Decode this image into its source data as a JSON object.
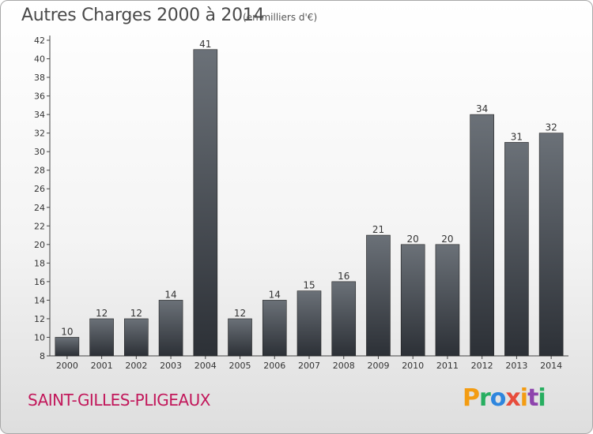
{
  "title": "Autres Charges 2000 à 2014",
  "subtitle": "(en milliers d'€)",
  "place_name": "SAINT-GILLES-PLIGEAUX",
  "brand": {
    "letters": [
      "P",
      "r",
      "o",
      "x",
      "i",
      "t",
      "i"
    ],
    "colors": [
      "#f39c12",
      "#27ae60",
      "#2e86de",
      "#e74c3c",
      "#f39c12",
      "#8e44ad",
      "#27ae60"
    ]
  },
  "colors": {
    "bar_top": "#6b7178",
    "bar_bottom": "#2c3036",
    "place": "#c2185b"
  },
  "chart_data": {
    "type": "bar",
    "title": "Autres Charges 2000 à 2014",
    "subtitle": "(en milliers d'€)",
    "xlabel": "",
    "ylabel": "",
    "categories": [
      "2000",
      "2001",
      "2002",
      "2003",
      "2004",
      "2005",
      "2006",
      "2007",
      "2008",
      "2009",
      "2010",
      "2011",
      "2012",
      "2013",
      "2014"
    ],
    "values": [
      10,
      12,
      12,
      14,
      41,
      12,
      14,
      15,
      16,
      21,
      20,
      20,
      34,
      31,
      32
    ],
    "ylim": [
      8,
      42
    ],
    "yticks": [
      8,
      10,
      12,
      14,
      16,
      18,
      20,
      22,
      24,
      26,
      28,
      30,
      32,
      34,
      36,
      38,
      40,
      42
    ],
    "grid": false
  }
}
